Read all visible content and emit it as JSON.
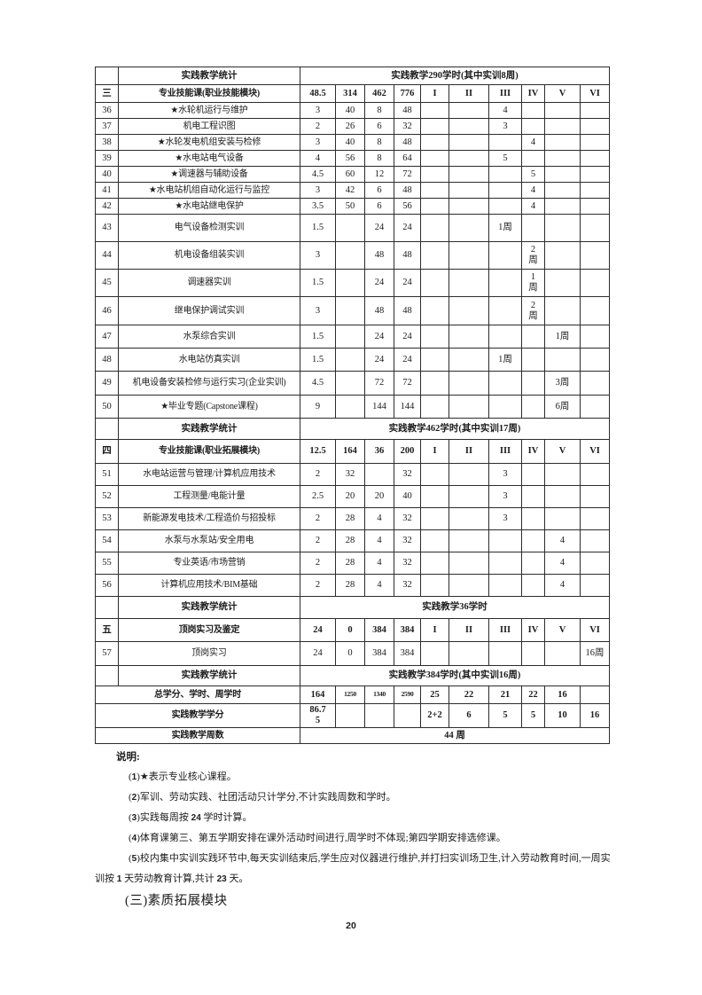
{
  "colors": {
    "border": "#2c2c2c",
    "text": "#1c1c1c",
    "background": "#ffffff"
  },
  "table": {
    "rows": [
      {
        "type": "stats",
        "label": "实践教学统计",
        "value": "实践教学290学时(其中实训8周)",
        "h": 20
      },
      {
        "type": "section",
        "seq": "三",
        "name": "专业技能课(职业技能模块)",
        "cells": [
          "48.5",
          "314",
          "462",
          "776",
          "I",
          "II",
          "III",
          "IV",
          "V",
          "VI"
        ],
        "h": 20
      },
      {
        "type": "course",
        "seq": "36",
        "name": "★水轮机运行与维护",
        "cells": [
          "3",
          "40",
          "8",
          "48",
          "",
          "",
          "4",
          "",
          "",
          ""
        ],
        "h": 18
      },
      {
        "type": "course",
        "seq": "37",
        "name": "机电工程识图",
        "cells": [
          "2",
          "26",
          "6",
          "32",
          "",
          "",
          "3",
          "",
          "",
          ""
        ],
        "h": 18
      },
      {
        "type": "course",
        "seq": "38",
        "name": "★水轮发电机组安装与检修",
        "cells": [
          "3",
          "40",
          "8",
          "48",
          "",
          "",
          "",
          "4",
          "",
          ""
        ],
        "h": 18
      },
      {
        "type": "course",
        "seq": "39",
        "name": "★水电站电气设备",
        "cells": [
          "4",
          "56",
          "8",
          "64",
          "",
          "",
          "5",
          "",
          "",
          ""
        ],
        "h": 18
      },
      {
        "type": "course",
        "seq": "40",
        "name": "★调速器与辅助设备",
        "cells": [
          "4.5",
          "60",
          "12",
          "72",
          "",
          "",
          "",
          "5",
          "",
          ""
        ],
        "h": 18
      },
      {
        "type": "course",
        "seq": "41",
        "name": "★水电站机组自动化运行与监控",
        "cells": [
          "3",
          "42",
          "6",
          "48",
          "",
          "",
          "",
          "4",
          "",
          ""
        ],
        "h": 18
      },
      {
        "type": "course",
        "seq": "42",
        "name": "★水电站继电保护",
        "cells": [
          "3.5",
          "50",
          "6",
          "56",
          "",
          "",
          "",
          "4",
          "",
          ""
        ],
        "h": 18
      },
      {
        "type": "course",
        "seq": "43",
        "name": "电气设备检测实训",
        "cells": [
          "1.5",
          "",
          "24",
          "24",
          "",
          "",
          "1周",
          "",
          "",
          ""
        ],
        "h": 31
      },
      {
        "type": "course",
        "seq": "44",
        "name": "机电设备组装实训",
        "cells": [
          "3",
          "",
          "48",
          "48",
          "",
          "",
          "",
          "2\n周",
          "",
          ""
        ],
        "h": 31
      },
      {
        "type": "course",
        "seq": "45",
        "name": "调速器实训",
        "cells": [
          "1.5",
          "",
          "24",
          "24",
          "",
          "",
          "",
          "1\n周",
          "",
          ""
        ],
        "h": 31
      },
      {
        "type": "course",
        "seq": "46",
        "name": "继电保护调试实训",
        "cells": [
          "3",
          "",
          "48",
          "48",
          "",
          "",
          "",
          "2\n周",
          "",
          ""
        ],
        "h": 32
      },
      {
        "type": "course",
        "seq": "47",
        "name": "水泵综合实训",
        "cells": [
          "1.5",
          "",
          "24",
          "24",
          "",
          "",
          "",
          "",
          "1周",
          ""
        ],
        "h": 26
      },
      {
        "type": "course",
        "seq": "48",
        "name": "水电站仿真实训",
        "cells": [
          "1.5",
          "",
          "24",
          "24",
          "",
          "",
          "1周",
          "",
          "",
          ""
        ],
        "h": 26
      },
      {
        "type": "course",
        "seq": "49",
        "name": "机电设备安装检修与运行实习(企业实训)",
        "cells": [
          "4.5",
          "",
          "72",
          "72",
          "",
          "",
          "",
          "",
          "3周",
          ""
        ],
        "h": 27
      },
      {
        "type": "course",
        "seq": "50",
        "name": "★毕业专题(Capstone课程)",
        "cells": [
          "9",
          "",
          "144",
          "144",
          "",
          "",
          "",
          "",
          "6周",
          ""
        ],
        "h": 26
      },
      {
        "type": "stats",
        "label": "实践教学统计",
        "value": "实践教学462学时(其中实训17周)",
        "h": 24
      },
      {
        "type": "section",
        "seq": "四",
        "name": "专业技能课(职业拓展模块)",
        "cells": [
          "12.5",
          "164",
          "36",
          "200",
          "I",
          "II",
          "III",
          "IV",
          "V",
          "VI"
        ],
        "h": 27
      },
      {
        "type": "course",
        "seq": "51",
        "name": "水电站运营与管理/计算机应用技术",
        "cells": [
          "2",
          "32",
          "",
          "32",
          "",
          "",
          "3",
          "",
          "",
          ""
        ],
        "h": 25
      },
      {
        "type": "course",
        "seq": "52",
        "name": "工程测量/电能计量",
        "cells": [
          "2.5",
          "20",
          "20",
          "40",
          "",
          "",
          "3",
          "",
          "",
          ""
        ],
        "h": 25
      },
      {
        "type": "course",
        "seq": "53",
        "name": "新能源发电技术/工程造价与招投标",
        "cells": [
          "2",
          "28",
          "4",
          "32",
          "",
          "",
          "3",
          "",
          "",
          ""
        ],
        "h": 25
      },
      {
        "type": "course",
        "seq": "54",
        "name": "水泵与水泵站/安全用电",
        "cells": [
          "2",
          "28",
          "4",
          "32",
          "",
          "",
          "",
          "",
          "4",
          ""
        ],
        "h": 25
      },
      {
        "type": "course",
        "seq": "55",
        "name": "专业英语/市场营销",
        "cells": [
          "2",
          "28",
          "4",
          "32",
          "",
          "",
          "",
          "",
          "4",
          ""
        ],
        "h": 25
      },
      {
        "type": "course",
        "seq": "56",
        "name": "计算机应用技术/BIM基础",
        "cells": [
          "2",
          "28",
          "4",
          "32",
          "",
          "",
          "",
          "",
          "4",
          ""
        ],
        "h": 25
      },
      {
        "type": "stats",
        "label": "实践教学统计",
        "value": "实践教学36学时",
        "h": 25
      },
      {
        "type": "section",
        "seq": "五",
        "name": "顶岗实习及鉴定",
        "center": true,
        "cells": [
          "24",
          "0",
          "384",
          "384",
          "I",
          "II",
          "III",
          "IV",
          "V",
          "VI"
        ],
        "h": 26
      },
      {
        "type": "course",
        "seq": "57",
        "name": "顶岗实习",
        "cells": [
          "24",
          "0",
          "384",
          "384",
          "",
          "",
          "",
          "",
          "",
          "16周"
        ],
        "h": 27
      },
      {
        "type": "stats",
        "label": "实践教学统计",
        "value": "实践教学384学时(其中实训16周)",
        "h": 23
      },
      {
        "type": "total",
        "label": "总学分、学时、周学时",
        "cells": [
          "164",
          "1250",
          "1340",
          "2590",
          "25",
          "22",
          "21",
          "22",
          "16",
          ""
        ],
        "small_cols": [
          1,
          2,
          3
        ],
        "h": 20
      },
      {
        "type": "total",
        "label": "实践教学学分",
        "cells": [
          "86.7\n5",
          "",
          "",
          "",
          "2+2",
          "6",
          "5",
          "5",
          "10",
          "16"
        ],
        "h": 27
      },
      {
        "type": "weeks",
        "label": "实践教学周数",
        "value": "44 周",
        "h": 18
      }
    ]
  },
  "notes": {
    "title": "说明:",
    "items": [
      "(1)★表示专业核心课程。",
      "(2)军训、劳动实践、社团活动只计学分,不计实践周数和学时。",
      "(3)实践每周按 24 学时计算。",
      "(4)体育课第三、第五学期安排在课外活动时间进行,周学时不体现;第四学期安排选修课。",
      "(5)校内集中实训实践环节中,每天实训结束后,学生应对仪器进行维护,并打扫实训场卫生,计入劳动教育时间,一周实训按 1 天劳动教育计算,共计 23 天。"
    ]
  },
  "heading_next": "(三)素质拓展模块",
  "page_number": "20"
}
